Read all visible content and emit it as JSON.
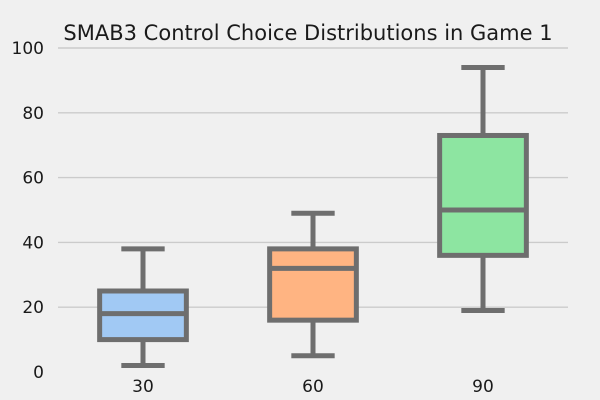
{
  "chart_data": {
    "type": "box",
    "title": "SMAB3 Control Choice Distributions in Game 1",
    "xlabel": "",
    "ylabel": "",
    "ylim": [
      0,
      100
    ],
    "yticks": [
      0,
      20,
      40,
      60,
      80,
      100
    ],
    "grid": true,
    "categories": [
      "30",
      "60",
      "90"
    ],
    "boxes": [
      {
        "category": "30",
        "min": 2,
        "q1": 10,
        "median": 18,
        "q3": 25,
        "max": 38,
        "color": "#a1c9f4"
      },
      {
        "category": "60",
        "min": 5,
        "q1": 16,
        "median": 32,
        "q3": 38,
        "max": 49,
        "color": "#ffb482"
      },
      {
        "category": "90",
        "min": 19,
        "q1": 36,
        "median": 50,
        "q3": 73,
        "max": 94,
        "color": "#8de5a1"
      }
    ]
  }
}
